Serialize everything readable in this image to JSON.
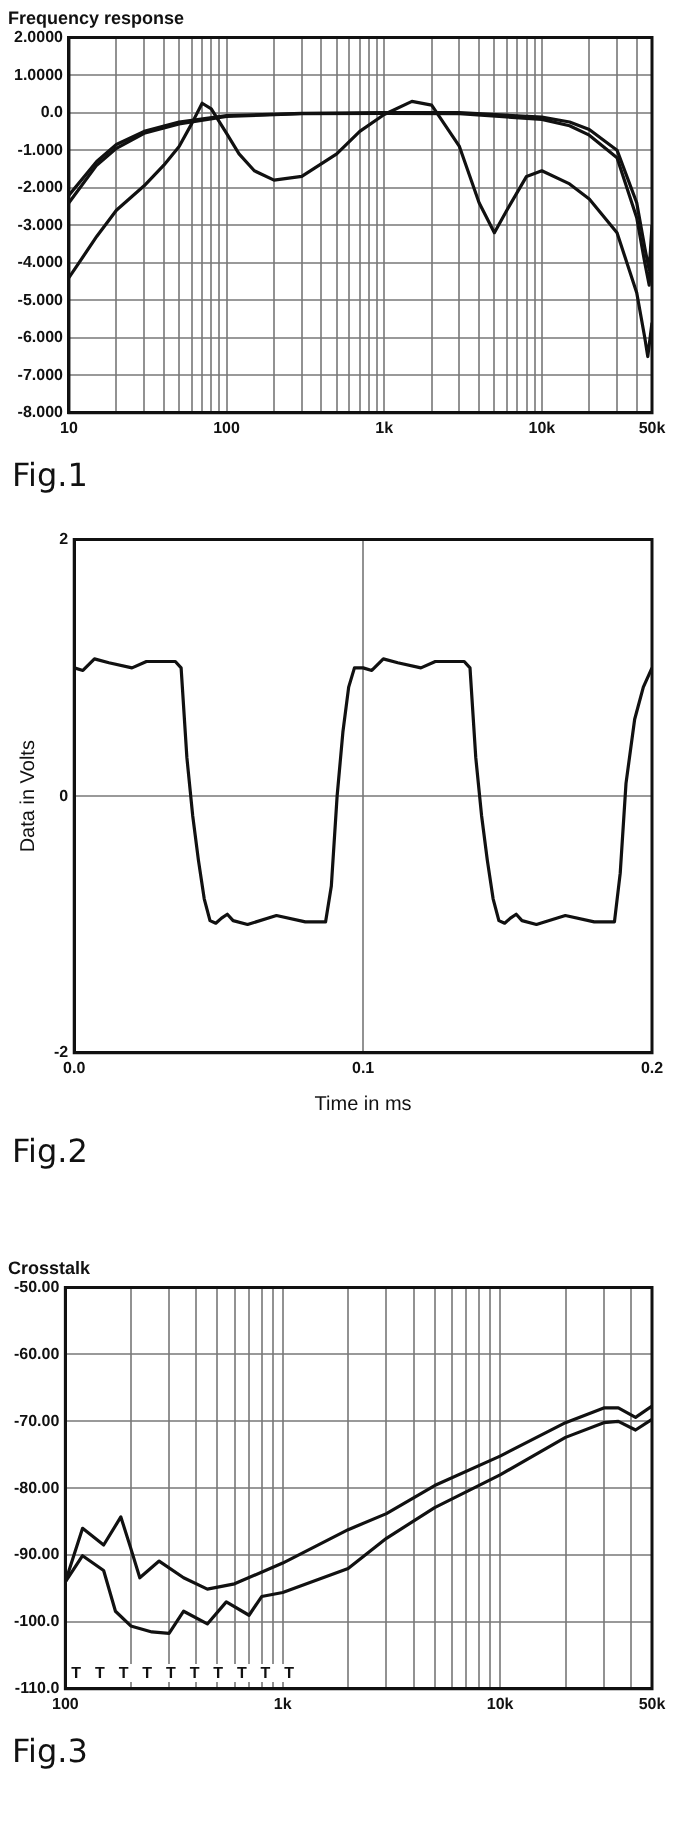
{
  "chart_data": [
    {
      "type": "line",
      "title": "Frequency response",
      "log": "x",
      "grid": true,
      "xlim": [
        10,
        50000
      ],
      "xticks": [
        10,
        {
          "value": 20,
          "label": null
        },
        {
          "value": 30,
          "label": null
        },
        {
          "value": 40,
          "label": null
        },
        {
          "value": 50,
          "label": null
        },
        {
          "value": 60,
          "label": null
        },
        {
          "value": 70,
          "label": null
        },
        {
          "value": 80,
          "label": null
        },
        {
          "value": 90,
          "label": null
        },
        100,
        {
          "value": 200,
          "label": null
        },
        {
          "value": 300,
          "label": null
        },
        {
          "value": 400,
          "label": null
        },
        {
          "value": 500,
          "label": null
        },
        {
          "value": 600,
          "label": null
        },
        {
          "value": 700,
          "label": null
        },
        {
          "value": 800,
          "label": null
        },
        {
          "value": 900,
          "label": null
        },
        {
          "value": 1000,
          "label": "1k"
        },
        {
          "value": 2000,
          "label": null
        },
        {
          "value": 3000,
          "label": null
        },
        {
          "value": 4000,
          "label": null
        },
        {
          "value": 5000,
          "label": null
        },
        {
          "value": 6000,
          "label": null
        },
        {
          "value": 7000,
          "label": null
        },
        {
          "value": 8000,
          "label": null
        },
        {
          "value": 9000,
          "label": null
        },
        {
          "value": 10000,
          "label": "10k"
        },
        {
          "value": 20000,
          "label": null
        },
        {
          "value": 30000,
          "label": null
        },
        {
          "value": 40000,
          "label": null
        },
        {
          "value": 50000,
          "label": "50k"
        }
      ],
      "ylim": [
        -8,
        2
      ],
      "yticks": [
        {
          "value": 2,
          "label": "2.0000"
        },
        {
          "value": 1,
          "label": "1.0000"
        },
        {
          "value": 0,
          "label": "0.0"
        },
        {
          "value": -1,
          "label": "-1.000"
        },
        {
          "value": -2,
          "label": "-2.000"
        },
        {
          "value": -3,
          "label": "-3.000"
        },
        {
          "value": -4,
          "label": "-4.000"
        },
        {
          "value": -5,
          "label": "-5.000"
        },
        {
          "value": -6,
          "label": "-6.000"
        },
        {
          "value": -7,
          "label": "-7.000"
        },
        {
          "value": -8,
          "label": "-8.000"
        }
      ],
      "series": [
        {
          "color": "#111111",
          "x": [
            10,
            15,
            20,
            30,
            50,
            100,
            300,
            1000,
            3000,
            10000,
            15000,
            20000,
            30000,
            40000,
            45000,
            48000,
            50000
          ],
          "values": [
            -2.2,
            -1.3,
            -0.85,
            -0.5,
            -0.25,
            -0.08,
            -0.02,
            0,
            0,
            -0.12,
            -0.25,
            -0.45,
            -1.0,
            -2.4,
            -3.6,
            -4.2,
            -3.0
          ]
        },
        {
          "color": "#111111",
          "x": [
            10,
            15,
            20,
            30,
            50,
            100,
            300,
            1000,
            3000,
            10000,
            15000,
            20000,
            30000,
            40000,
            45000,
            48000,
            50000
          ],
          "values": [
            -2.4,
            -1.4,
            -0.95,
            -0.55,
            -0.3,
            -0.1,
            -0.03,
            -0.02,
            -0.03,
            -0.18,
            -0.35,
            -0.6,
            -1.2,
            -2.8,
            -4.0,
            -4.6,
            -3.3
          ]
        },
        {
          "color": "#111111",
          "x": [
            10,
            15,
            20,
            30,
            40,
            50,
            60,
            70,
            80,
            100,
            120,
            150,
            200,
            300,
            500,
            700,
            1000,
            1500,
            2000,
            3000,
            4000,
            5000,
            6000,
            8000,
            10000,
            15000,
            20000,
            30000,
            40000,
            45000,
            47000,
            50000
          ],
          "values": [
            -4.4,
            -3.3,
            -2.6,
            -1.95,
            -1.4,
            -0.9,
            -0.3,
            0.25,
            0.1,
            -0.55,
            -1.1,
            -1.55,
            -1.8,
            -1.7,
            -1.1,
            -0.5,
            -0.05,
            0.3,
            0.2,
            -0.9,
            -2.4,
            -3.2,
            -2.6,
            -1.7,
            -1.55,
            -1.9,
            -2.3,
            -3.2,
            -4.8,
            -6.0,
            -6.5,
            -5.6
          ]
        }
      ],
      "annotations": [
        "Fig.1"
      ]
    },
    {
      "type": "line",
      "xlabel": "Time in ms",
      "ylabel": "Data in Volts",
      "grid": true,
      "xlim": [
        0,
        0.2
      ],
      "xticks": [
        {
          "value": 0,
          "label": "0.0"
        },
        0.1,
        0.2
      ],
      "ylim": [
        -2,
        2
      ],
      "yticks": [
        -2,
        0,
        2
      ],
      "series": [
        {
          "color": "#111111",
          "x": [
            0,
            0.003,
            0.007,
            0.012,
            0.02,
            0.025,
            0.035,
            0.037,
            0.039,
            0.041,
            0.043,
            0.045,
            0.047,
            0.049,
            0.051,
            0.053,
            0.055,
            0.06,
            0.07,
            0.08,
            0.087,
            0.089,
            0.091,
            0.093,
            0.095,
            0.097,
            0.1,
            0.103,
            0.107,
            0.112,
            0.12,
            0.125,
            0.135,
            0.137,
            0.139,
            0.141,
            0.143,
            0.145,
            0.147,
            0.149,
            0.151,
            0.153,
            0.155,
            0.16,
            0.17,
            0.18,
            0.187,
            0.189,
            0.191,
            0.194,
            0.197,
            0.2
          ],
          "values": [
            1,
            0.98,
            1.07,
            1.04,
            1,
            1.05,
            1.05,
            1,
            0.3,
            -0.15,
            -0.5,
            -0.8,
            -0.97,
            -0.99,
            -0.95,
            -0.92,
            -0.97,
            -1,
            -0.93,
            -0.98,
            -0.98,
            -0.7,
            0,
            0.5,
            0.85,
            1,
            1,
            0.98,
            1.07,
            1.04,
            1,
            1.05,
            1.05,
            1,
            0.3,
            -0.15,
            -0.5,
            -0.8,
            -0.97,
            -0.99,
            -0.95,
            -0.92,
            -0.97,
            -1,
            -0.93,
            -0.98,
            -0.98,
            -0.6,
            0.1,
            0.6,
            0.85,
            1
          ]
        }
      ],
      "annotations": [
        "Fig.2"
      ]
    },
    {
      "type": "line",
      "title": "Crosstalk",
      "log": "x",
      "grid": true,
      "xlim": [
        100,
        50000
      ],
      "xticks": [
        100,
        {
          "value": 200,
          "label": null
        },
        {
          "value": 300,
          "label": null
        },
        {
          "value": 400,
          "label": null
        },
        {
          "value": 500,
          "label": null
        },
        {
          "value": 600,
          "label": null
        },
        {
          "value": 700,
          "label": null
        },
        {
          "value": 800,
          "label": null
        },
        {
          "value": 900,
          "label": null
        },
        {
          "value": 1000,
          "label": "1k"
        },
        {
          "value": 2000,
          "label": null
        },
        {
          "value": 3000,
          "label": null
        },
        {
          "value": 4000,
          "label": null
        },
        {
          "value": 5000,
          "label": null
        },
        {
          "value": 6000,
          "label": null
        },
        {
          "value": 7000,
          "label": null
        },
        {
          "value": 8000,
          "label": null
        },
        {
          "value": 9000,
          "label": null
        },
        {
          "value": 10000,
          "label": "10k"
        },
        {
          "value": 20000,
          "label": null
        },
        {
          "value": 30000,
          "label": null
        },
        {
          "value": 40000,
          "label": null
        },
        {
          "value": 50000,
          "label": "50k"
        }
      ],
      "ylim": [
        -110,
        -50
      ],
      "yticks": [
        {
          "value": -50,
          "label": "-50.00"
        },
        {
          "value": -60,
          "label": "-60.00"
        },
        {
          "value": -70,
          "label": "-70.00"
        },
        {
          "value": -80,
          "label": "-80.00"
        },
        {
          "value": -90,
          "label": "-90.00"
        },
        {
          "value": -100,
          "label": "-100.0"
        },
        {
          "value": -110,
          "label": "-110.0"
        }
      ],
      "series": [
        {
          "color": "#111111",
          "x": [
            100,
            120,
            150,
            180,
            200,
            220,
            270,
            350,
            450,
            600,
            1000,
            2000,
            3000,
            5000,
            10000,
            20000,
            30000,
            35000,
            42000,
            50000
          ],
          "values": [
            -94,
            -86,
            -88.5,
            -84.3,
            -89,
            -93.4,
            -90.9,
            -93.4,
            -95.1,
            -94.3,
            -91.2,
            -86.2,
            -83.8,
            -79.6,
            -75.2,
            -70.2,
            -68,
            -68,
            -69.4,
            -67.7
          ]
        },
        {
          "color": "#111111",
          "x": [
            100,
            120,
            150,
            170,
            200,
            250,
            300,
            350,
            450,
            550,
            700,
            800,
            1000,
            2000,
            3000,
            5000,
            10000,
            20000,
            30000,
            35000,
            42000,
            50000
          ],
          "values": [
            -94,
            -90.1,
            -92.3,
            -98.4,
            -100.6,
            -101.5,
            -101.7,
            -98.4,
            -100.3,
            -97,
            -99,
            -96.2,
            -95.6,
            -92,
            -87.5,
            -82.9,
            -78,
            -72.4,
            -70.2,
            -70,
            -71.3,
            -69.7
          ]
        }
      ],
      "annotations": [
        "T",
        "T",
        "T",
        "T",
        "T",
        "T",
        "T",
        "T",
        "T",
        "T",
        "Fig.3"
      ]
    }
  ]
}
